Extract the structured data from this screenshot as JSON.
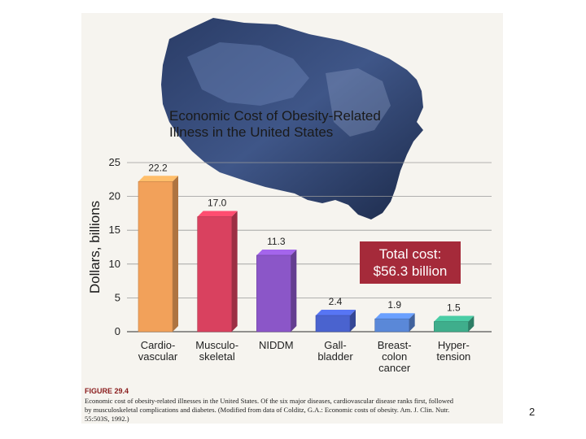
{
  "chart_data": {
    "type": "bar",
    "title_line1": "Economic Cost of Obesity-Related",
    "title_line2": "Illness in the United States",
    "ylabel": "Dollars, billions",
    "ylim": [
      0,
      25
    ],
    "yticks": [
      "0",
      "5",
      "10",
      "15",
      "20",
      "25"
    ],
    "categories": [
      {
        "line1": "Cardio-",
        "line2": "vascular",
        "line3": ""
      },
      {
        "line1": "Musculo-",
        "line2": "skeletal",
        "line3": ""
      },
      {
        "line1": "NIDDM",
        "line2": "",
        "line3": ""
      },
      {
        "line1": "Gall-",
        "line2": "bladder",
        "line3": ""
      },
      {
        "line1": "Breast-",
        "line2": "colon",
        "line3": "cancer"
      },
      {
        "line1": "Hyper-",
        "line2": "tension",
        "line3": ""
      }
    ],
    "values": [
      22.2,
      17.0,
      11.3,
      2.4,
      1.9,
      1.5
    ],
    "value_labels": [
      "22.2",
      "17.0",
      "11.3",
      "2.4",
      "1.9",
      "1.5"
    ],
    "bar_colors": [
      "#f2a15a",
      "#d9415f",
      "#8b56c8",
      "#4a63cf",
      "#5a88d8",
      "#3fae8c"
    ],
    "grid": true,
    "callout_line1": "Total cost:",
    "callout_line2": "$56.3 billion",
    "callout_color": "#a52a3a"
  },
  "caption": {
    "label": "FIGURE 29.4",
    "line1": "Economic cost of obesity-related illnesses in the United States. Of the six major diseases, cardiovascular disease ranks first, followed",
    "line2": "by musculoskeletal complications and diabetes. (Modified from data of Colditz, G.A.: Economic costs of obesity. Am. J. Clin. Nutr.",
    "line3": "55:503S, 1992.)"
  },
  "page_number": "2"
}
